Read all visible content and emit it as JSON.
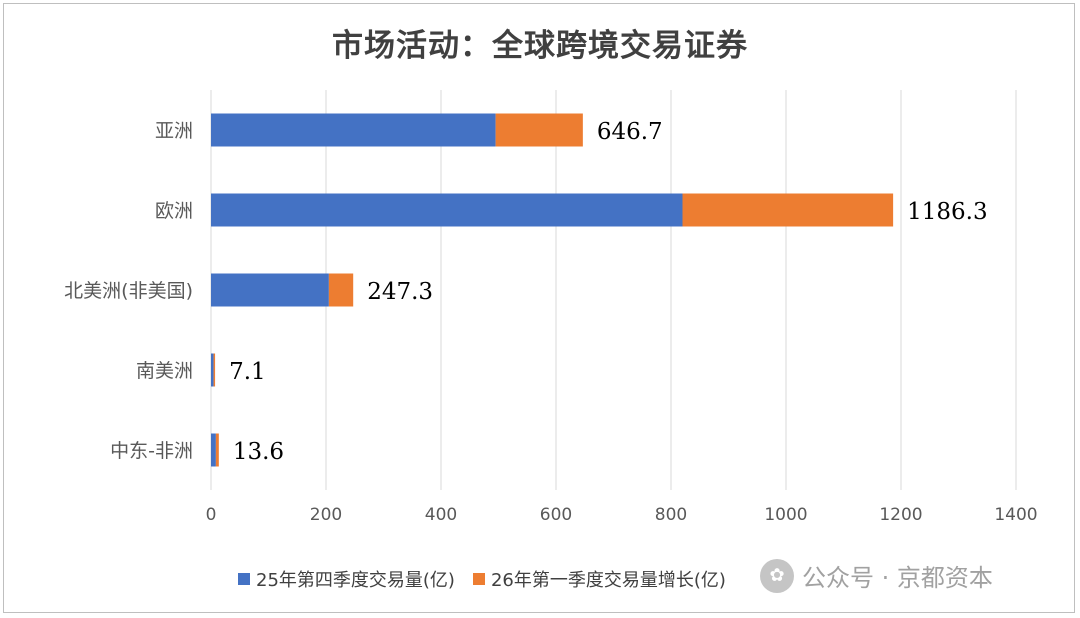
{
  "chart_data": {
    "type": "bar",
    "orientation": "horizontal",
    "stacked": true,
    "title": "市场活动：全球跨境交易证券",
    "categories": [
      "亚洲",
      "欧洲",
      "北美洲(非美国)",
      "南美洲",
      "中东-非洲"
    ],
    "series": [
      {
        "name": "25年第四季度交易量(亿)",
        "color": "#4472C4",
        "values": [
          495,
          820,
          205,
          4.5,
          8.5
        ]
      },
      {
        "name": "26年第一季度交易量增长(亿)",
        "color": "#ED7D31",
        "values": [
          151.7,
          366.3,
          42.3,
          2.6,
          5.1
        ]
      }
    ],
    "data_labels": [
      "646.7",
      "1186.3",
      "247.3",
      "7.1",
      "13.6"
    ],
    "xlim": [
      0,
      1400
    ],
    "xticks": [
      "0",
      "200",
      "400",
      "600",
      "800",
      "1000",
      "1200",
      "1400"
    ],
    "grid": true,
    "legend_position": "bottom"
  },
  "watermark": {
    "text": "公众号 · 京都资本"
  }
}
